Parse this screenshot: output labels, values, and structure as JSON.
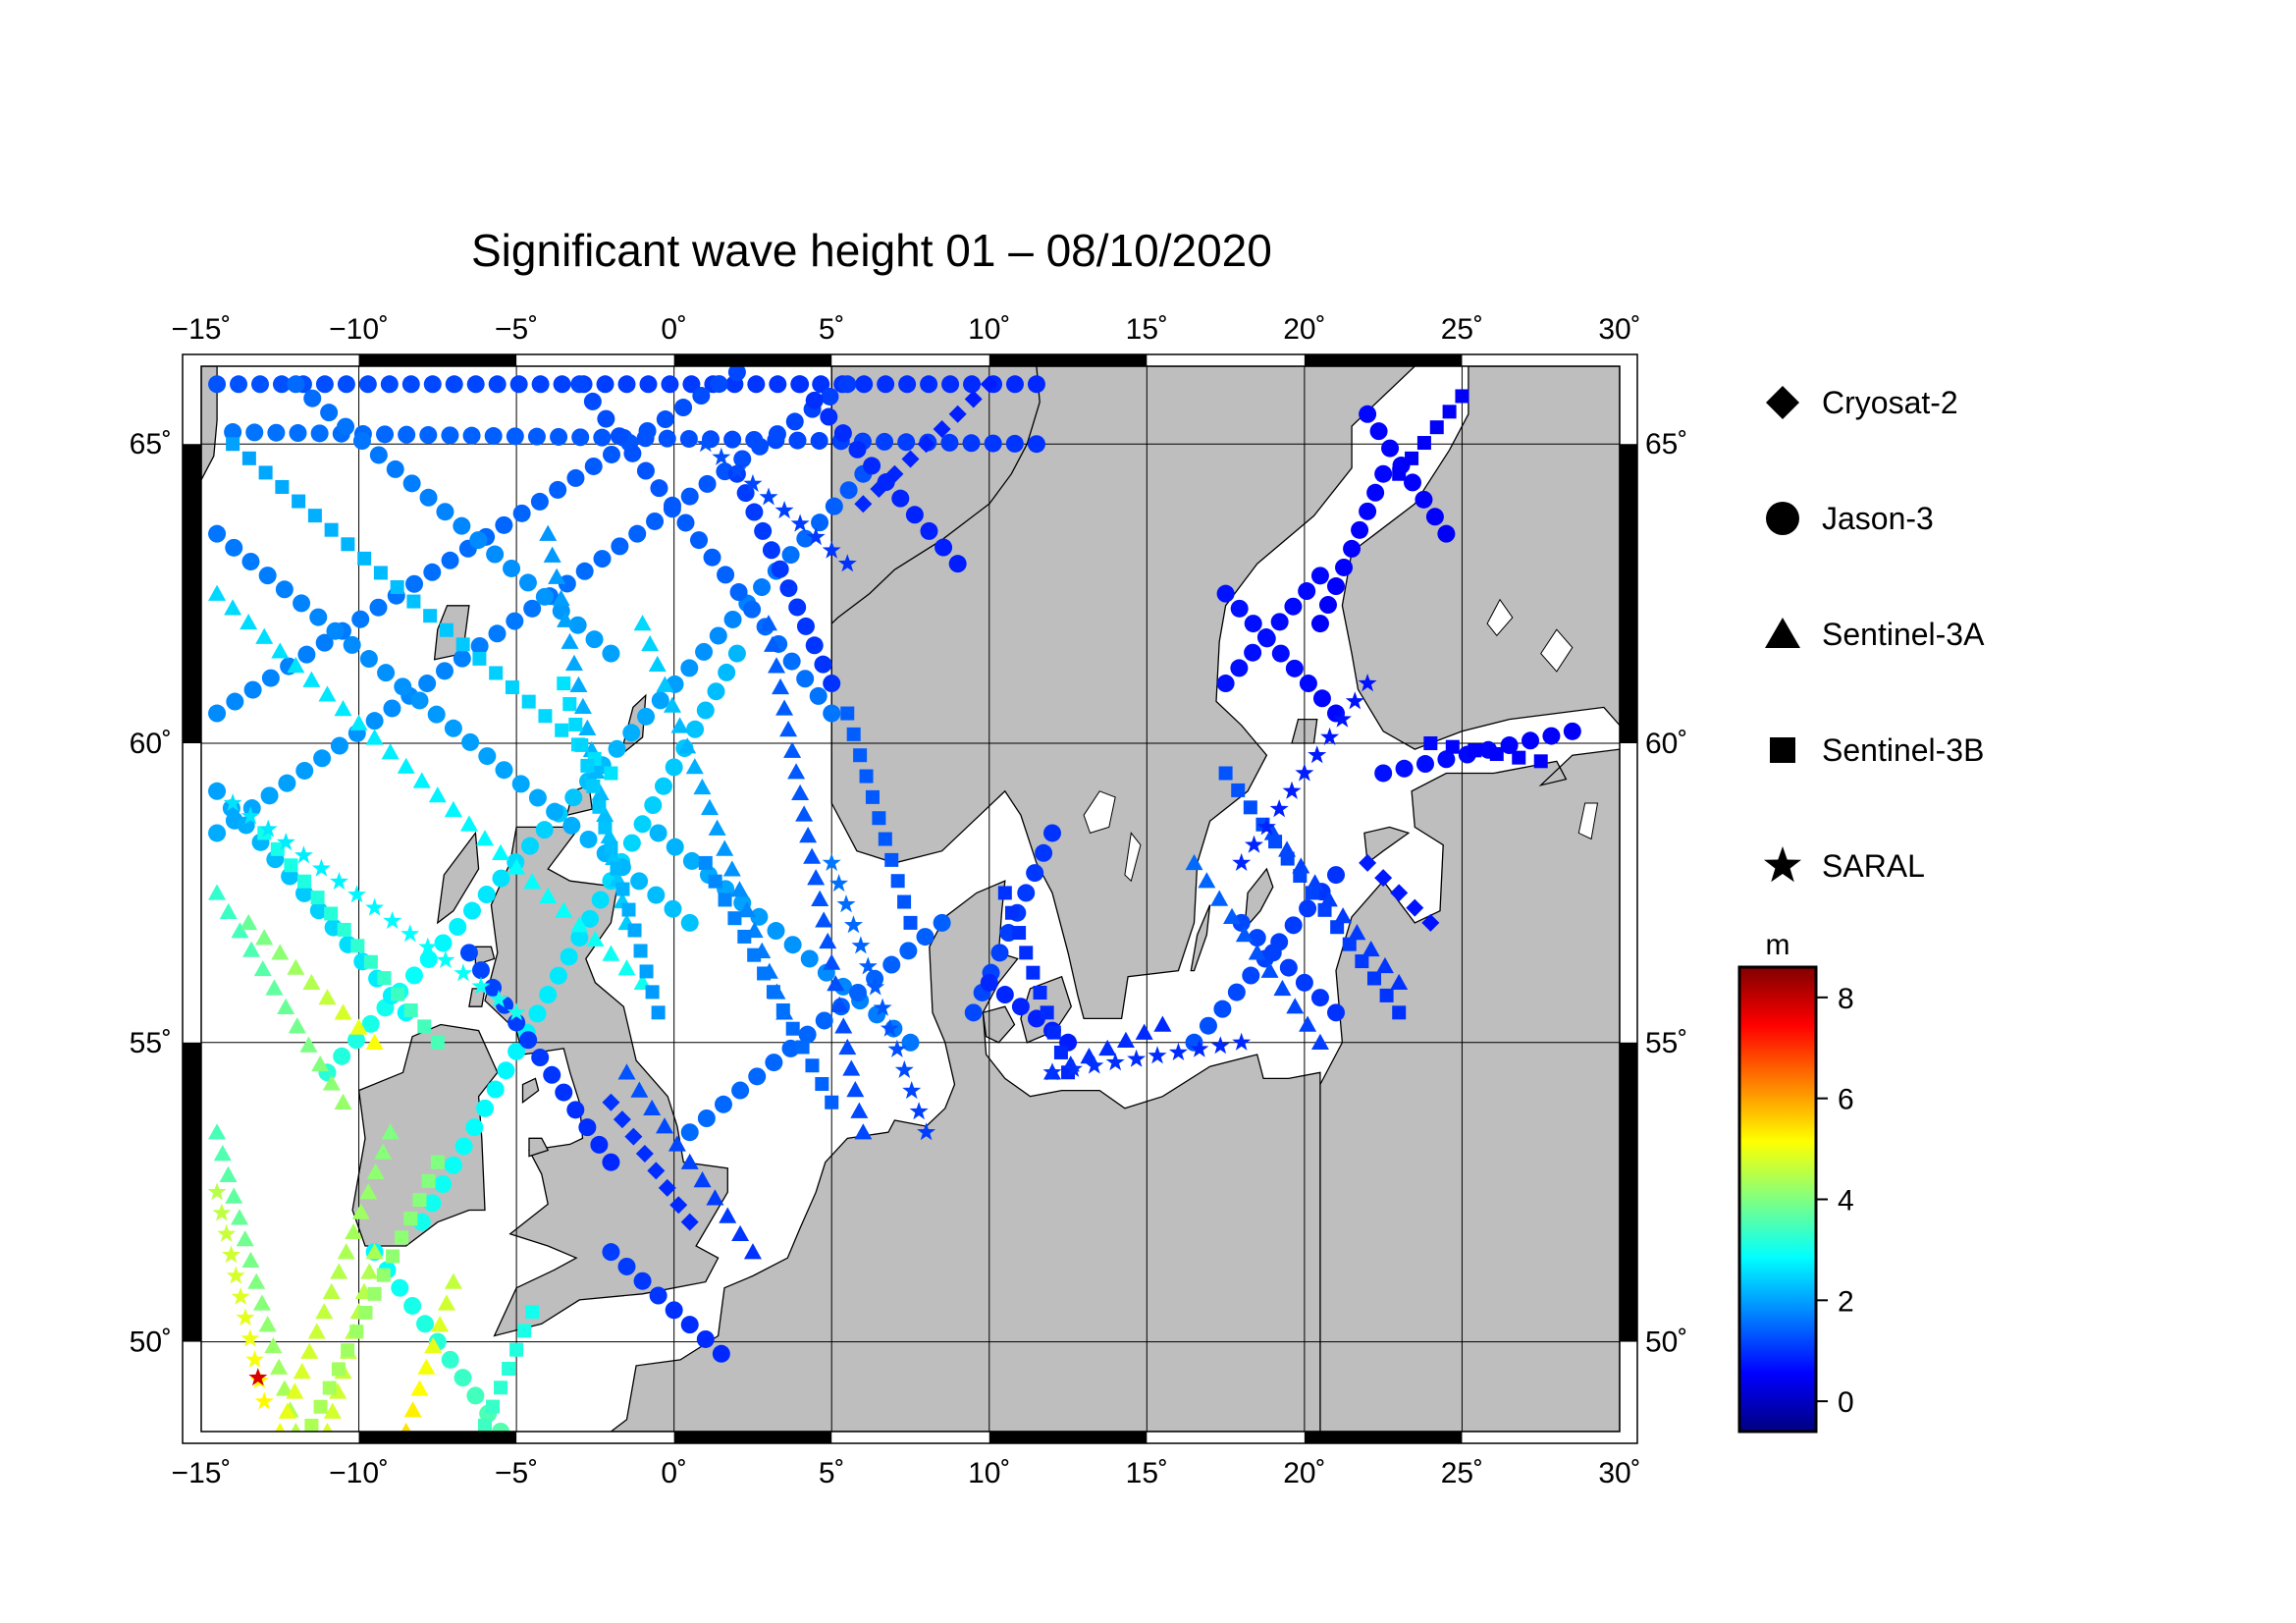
{
  "title": "Significant wave height 01 – 08/10/2020",
  "map": {
    "lon_range": [
      -15,
      30
    ],
    "lat_range": [
      48.5,
      66.3
    ],
    "lon_ticks": [
      -15,
      -10,
      -5,
      0,
      5,
      10,
      15,
      20,
      25,
      30
    ],
    "lon_tick_labels": [
      "−15˚",
      "−10˚",
      "−5˚",
      "0˚",
      "5˚",
      "10˚",
      "15˚",
      "20˚",
      "25˚",
      "30˚"
    ],
    "lat_ticks": [
      50,
      55,
      60,
      65
    ],
    "lat_tick_labels": [
      "50˚",
      "55˚",
      "60˚",
      "65˚"
    ],
    "land_color": "#bebebe",
    "sea_color": "#ffffff"
  },
  "legend": {
    "items": [
      {
        "label": "Cryosat-2",
        "symbol": "diamond"
      },
      {
        "label": "Jason-3",
        "symbol": "circle"
      },
      {
        "label": "Sentinel-3A",
        "symbol": "triangle"
      },
      {
        "label": "Sentinel-3B",
        "symbol": "square"
      },
      {
        "label": "SARAL",
        "symbol": "star"
      }
    ]
  },
  "colorbar": {
    "unit": "m",
    "range": [
      -0.6,
      8.6
    ],
    "ticks": [
      0,
      2,
      4,
      6,
      8
    ],
    "tick_labels": [
      "0",
      "2",
      "4",
      "6",
      "8"
    ],
    "colors": [
      "#000080",
      "#0000ff",
      "#0080ff",
      "#00ffff",
      "#80ff80",
      "#ffff00",
      "#ff8000",
      "#ff0000",
      "#800000"
    ]
  },
  "tracks": [
    {
      "sat": "Jason-3",
      "from": [
        -14.5,
        66.0
      ],
      "to": [
        11.5,
        66.0
      ],
      "swh": [
        1.3,
        0.9
      ]
    },
    {
      "sat": "Jason-3",
      "from": [
        -14.0,
        65.2
      ],
      "to": [
        11.5,
        65.0
      ],
      "swh": [
        1.6,
        1.0
      ]
    },
    {
      "sat": "Jason-3",
      "from": [
        -14.5,
        60.5
      ],
      "to": [
        2.0,
        66.2
      ],
      "swh": [
        1.8,
        1.2
      ]
    },
    {
      "sat": "Jason-3",
      "from": [
        -14.5,
        58.5
      ],
      "to": [
        5.5,
        66.0
      ],
      "swh": [
        2.1,
        1.1
      ]
    },
    {
      "sat": "Jason-3",
      "from": [
        -11.0,
        54.5
      ],
      "to": [
        6.0,
        64.5
      ],
      "swh": [
        3.2,
        1.3
      ]
    },
    {
      "sat": "Jason-3",
      "from": [
        -8.0,
        52.0
      ],
      "to": [
        2.0,
        61.5
      ],
      "swh": [
        3.0,
        2.2
      ]
    },
    {
      "sat": "Jason-3",
      "from": [
        -3.0,
        66.0
      ],
      "to": [
        5.0,
        60.5
      ],
      "swh": [
        1.2,
        1.6
      ]
    },
    {
      "sat": "Jason-3",
      "from": [
        -12.0,
        66.0
      ],
      "to": [
        -2.0,
        61.5
      ],
      "swh": [
        1.5,
        2.0
      ]
    },
    {
      "sat": "Jason-3",
      "from": [
        -14.5,
        63.5
      ],
      "to": [
        0.5,
        57.0
      ],
      "swh": [
        1.6,
        2.3
      ]
    },
    {
      "sat": "Jason-3",
      "from": [
        -14.5,
        59.2
      ],
      "to": [
        -8.5,
        55.5
      ],
      "swh": [
        2.0,
        2.8
      ]
    },
    {
      "sat": "Jason-3",
      "from": [
        4.0,
        66.0
      ],
      "to": [
        9.0,
        63.0
      ],
      "swh": [
        1.0,
        0.8
      ]
    },
    {
      "sat": "Jason-3",
      "from": [
        2.0,
        64.5
      ],
      "to": [
        5.0,
        61.0
      ],
      "swh": [
        1.1,
        1.0
      ]
    },
    {
      "sat": "Jason-3",
      "from": [
        -0.5,
        58.5
      ],
      "to": [
        7.5,
        55.0
      ],
      "swh": [
        2.2,
        1.6
      ]
    },
    {
      "sat": "Jason-3",
      "from": [
        0.5,
        53.5
      ],
      "to": [
        8.5,
        57.0
      ],
      "swh": [
        1.5,
        1.4
      ]
    },
    {
      "sat": "Jason-3",
      "from": [
        -6.5,
        56.5
      ],
      "to": [
        -2.0,
        53.0
      ],
      "swh": [
        1.2,
        0.9
      ]
    },
    {
      "sat": "Jason-3",
      "from": [
        -9.5,
        51.5
      ],
      "to": [
        -5.5,
        48.5
      ],
      "swh": [
        2.8,
        3.6
      ]
    },
    {
      "sat": "Jason-3",
      "from": [
        -2.0,
        51.5
      ],
      "to": [
        1.5,
        49.8
      ],
      "swh": [
        1.1,
        0.9
      ]
    },
    {
      "sat": "Jason-3",
      "from": [
        9.5,
        55.5
      ],
      "to": [
        12.0,
        58.5
      ],
      "swh": [
        1.2,
        1.0
      ]
    },
    {
      "sat": "Jason-3",
      "from": [
        10.0,
        56.0
      ],
      "to": [
        12.5,
        55.0
      ],
      "swh": [
        0.9,
        0.8
      ]
    },
    {
      "sat": "Jason-3",
      "from": [
        22.0,
        65.5
      ],
      "to": [
        24.5,
        63.5
      ],
      "swh": [
        0.6,
        0.5
      ]
    },
    {
      "sat": "Jason-3",
      "from": [
        22.5,
        64.5
      ],
      "to": [
        20.5,
        62.0
      ],
      "swh": [
        0.6,
        0.5
      ]
    },
    {
      "sat": "Jason-3",
      "from": [
        17.5,
        62.5
      ],
      "to": [
        21.0,
        60.5
      ],
      "swh": [
        0.7,
        0.6
      ]
    },
    {
      "sat": "Jason-3",
      "from": [
        17.5,
        61.0
      ],
      "to": [
        20.5,
        62.8
      ],
      "swh": [
        0.7,
        0.6
      ]
    },
    {
      "sat": "Jason-3",
      "from": [
        22.5,
        59.5
      ],
      "to": [
        28.5,
        60.2
      ],
      "swh": [
        0.7,
        0.5
      ]
    },
    {
      "sat": "Jason-3",
      "from": [
        16.5,
        55.0
      ],
      "to": [
        21.0,
        57.8
      ],
      "swh": [
        1.3,
        1.0
      ]
    },
    {
      "sat": "Jason-3",
      "from": [
        18.0,
        57.0
      ],
      "to": [
        21.0,
        55.5
      ],
      "swh": [
        1.2,
        1.0
      ]
    },
    {
      "sat": "Sentinel-3A",
      "from": [
        -14.5,
        62.5
      ],
      "to": [
        -1.0,
        56.0
      ],
      "swh": [
        2.5,
        3.0
      ]
    },
    {
      "sat": "Sentinel-3A",
      "from": [
        -14.5,
        57.5
      ],
      "to": [
        -10.5,
        54.0
      ],
      "swh": [
        3.3,
        4.2
      ]
    },
    {
      "sat": "Sentinel-3A",
      "from": [
        -14.5,
        53.5
      ],
      "to": [
        -12.0,
        48.5
      ],
      "swh": [
        3.5,
        4.5
      ]
    },
    {
      "sat": "Sentinel-3A",
      "from": [
        -13.5,
        57.0
      ],
      "to": [
        -9.5,
        55.0
      ],
      "swh": [
        3.8,
        5.1
      ]
    },
    {
      "sat": "Sentinel-3A",
      "from": [
        -12.5,
        48.5
      ],
      "to": [
        -9.0,
        53.5
      ],
      "swh": [
        5.0,
        4.0
      ]
    },
    {
      "sat": "Sentinel-3A",
      "from": [
        -8.5,
        48.5
      ],
      "to": [
        -7.0,
        51.0
      ],
      "swh": [
        5.4,
        4.6
      ]
    },
    {
      "sat": "Sentinel-3A",
      "from": [
        -11.0,
        48.5
      ],
      "to": [
        -9.5,
        51.5
      ],
      "swh": [
        4.8,
        4.4
      ]
    },
    {
      "sat": "Sentinel-3A",
      "from": [
        -4.0,
        63.5
      ],
      "to": [
        -1.5,
        57.0
      ],
      "swh": [
        1.9,
        2.4
      ]
    },
    {
      "sat": "Sentinel-3A",
      "from": [
        3.0,
        62.0
      ],
      "to": [
        6.0,
        53.5
      ],
      "swh": [
        1.4,
        1.2
      ]
    },
    {
      "sat": "Sentinel-3A",
      "from": [
        -1.0,
        62.0
      ],
      "to": [
        3.5,
        55.5
      ],
      "swh": [
        2.5,
        1.5
      ]
    },
    {
      "sat": "Sentinel-3A",
      "from": [
        -1.5,
        54.5
      ],
      "to": [
        2.5,
        51.5
      ],
      "swh": [
        1.3,
        1.0
      ]
    },
    {
      "sat": "Sentinel-3A",
      "from": [
        16.5,
        58.0
      ],
      "to": [
        20.5,
        55.0
      ],
      "swh": [
        1.5,
        1.1
      ]
    },
    {
      "sat": "Sentinel-3A",
      "from": [
        12.0,
        54.5
      ],
      "to": [
        15.5,
        55.3
      ],
      "swh": [
        1.0,
        0.9
      ]
    },
    {
      "sat": "Sentinel-3A",
      "from": [
        19.0,
        58.5
      ],
      "to": [
        23.0,
        56.0
      ],
      "swh": [
        1.2,
        1.0
      ]
    },
    {
      "sat": "Sentinel-3B",
      "from": [
        -14.0,
        65.0
      ],
      "to": [
        -2.0,
        59.5
      ],
      "swh": [
        2.0,
        2.6
      ]
    },
    {
      "sat": "Sentinel-3B",
      "from": [
        -13.0,
        58.5
      ],
      "to": [
        -7.5,
        55.0
      ],
      "swh": [
        3.0,
        3.5
      ]
    },
    {
      "sat": "Sentinel-3B",
      "from": [
        -11.5,
        48.6
      ],
      "to": [
        -7.5,
        53.0
      ],
      "swh": [
        4.4,
        4.0
      ]
    },
    {
      "sat": "Sentinel-3B",
      "from": [
        -6.0,
        48.6
      ],
      "to": [
        -4.5,
        50.5
      ],
      "swh": [
        3.4,
        3.0
      ]
    },
    {
      "sat": "Sentinel-3B",
      "from": [
        -3.5,
        61.0
      ],
      "to": [
        -0.5,
        55.5
      ],
      "swh": [
        2.6,
        1.9
      ]
    },
    {
      "sat": "Sentinel-3B",
      "from": [
        1.0,
        58.0
      ],
      "to": [
        5.0,
        54.0
      ],
      "swh": [
        1.8,
        1.4
      ]
    },
    {
      "sat": "Sentinel-3B",
      "from": [
        5.5,
        60.5
      ],
      "to": [
        7.5,
        57.0
      ],
      "swh": [
        1.4,
        1.3
      ]
    },
    {
      "sat": "Sentinel-3B",
      "from": [
        10.5,
        57.5
      ],
      "to": [
        12.5,
        54.5
      ],
      "swh": [
        1.0,
        0.9
      ]
    },
    {
      "sat": "Sentinel-3B",
      "from": [
        17.5,
        59.5
      ],
      "to": [
        23.0,
        55.5
      ],
      "swh": [
        1.3,
        1.0
      ]
    },
    {
      "sat": "Sentinel-3B",
      "from": [
        23.0,
        64.5
      ],
      "to": [
        25.0,
        65.8
      ],
      "swh": [
        0.5,
        0.5
      ]
    },
    {
      "sat": "Sentinel-3B",
      "from": [
        24.0,
        60.0
      ],
      "to": [
        27.5,
        59.7
      ],
      "swh": [
        0.6,
        0.5
      ]
    },
    {
      "sat": "SARAL",
      "from": [
        -14.5,
        52.5
      ],
      "to": [
        -13.0,
        49.0
      ],
      "swh": [
        4.5,
        5.2
      ]
    },
    {
      "sat": "SARAL",
      "from": [
        -14.0,
        59.0
      ],
      "to": [
        -5.0,
        55.5
      ],
      "swh": [
        2.6,
        3.0
      ]
    },
    {
      "sat": "SARAL",
      "from": [
        1.0,
        65.0
      ],
      "to": [
        5.5,
        63.0
      ],
      "swh": [
        1.3,
        1.0
      ]
    },
    {
      "sat": "SARAL",
      "from": [
        5.0,
        58.0
      ],
      "to": [
        8.0,
        53.5
      ],
      "swh": [
        1.6,
        1.1
      ]
    },
    {
      "sat": "SARAL",
      "from": [
        18.0,
        58.0
      ],
      "to": [
        22.0,
        61.0
      ],
      "swh": [
        0.9,
        0.7
      ]
    },
    {
      "sat": "SARAL",
      "from": [
        12.0,
        54.5
      ],
      "to": [
        18.0,
        55.0
      ],
      "swh": [
        1.0,
        0.9
      ]
    },
    {
      "sat": "Cryosat-2",
      "from": [
        6.0,
        64.0
      ],
      "to": [
        10.0,
        66.0
      ],
      "swh": [
        0.9,
        0.8
      ]
    },
    {
      "sat": "Cryosat-2",
      "from": [
        -2.0,
        54.0
      ],
      "to": [
        0.5,
        52.0
      ],
      "swh": [
        1.0,
        0.9
      ]
    },
    {
      "sat": "Cryosat-2",
      "from": [
        22.0,
        58.0
      ],
      "to": [
        24.0,
        57.0
      ],
      "swh": [
        0.8,
        0.7
      ]
    }
  ],
  "highlight_points": [
    {
      "sat": "SARAL",
      "lon": -13.2,
      "lat": 49.4,
      "swh": 7.8
    }
  ]
}
